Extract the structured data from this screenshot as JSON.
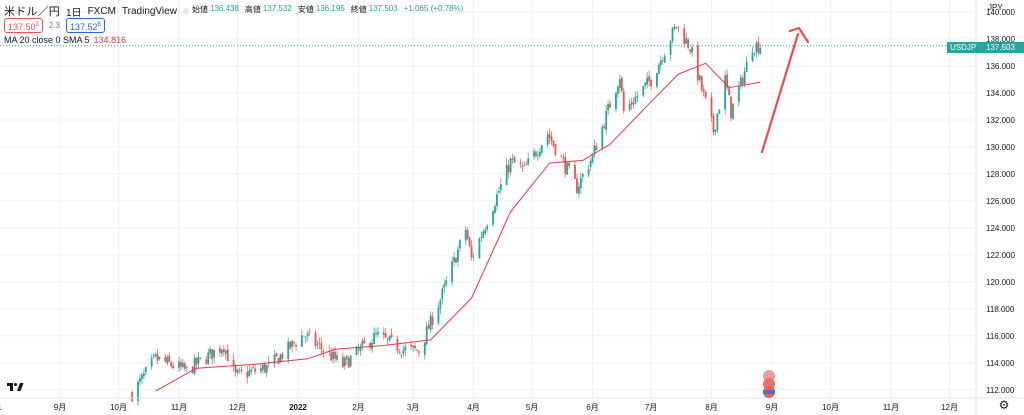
{
  "header": {
    "symbol": "米ドル／円",
    "interval": "1日",
    "exchange": "FXCM",
    "source": "TradingView"
  },
  "ohlc": {
    "open_label": "始値",
    "open": "136.438",
    "high_label": "高値",
    "high": "137.532",
    "low_label": "安値",
    "low": "136.195",
    "close_label": "終値",
    "close": "137.503",
    "change": "+1.065 (+0.78%)"
  },
  "quote": {
    "bid": "137.50",
    "bid_sup": "3",
    "spread": "2.3",
    "ask": "137.52",
    "ask_sup": "6"
  },
  "indicator": {
    "label": "MA 20 close 0 SMA 5",
    "value": "134.816"
  },
  "axis": {
    "currency": "JPY",
    "symbol_tag": "USDJPY",
    "price_tag": "137.503",
    "price_ticks": [
      "140.000",
      "138.000",
      "136.000",
      "134.000",
      "132.000",
      "130.000",
      "128.000",
      "126.000",
      "124.000",
      "122.000",
      "120.000",
      "118.000",
      "116.000",
      "114.000",
      "112.000"
    ],
    "time_ticks": [
      "1",
      "9月",
      "10月",
      "11月",
      "12月",
      "2022",
      "2月",
      "3月",
      "4月",
      "5月",
      "6月",
      "7月",
      "8月",
      "9月",
      "10月",
      "11月",
      "12月"
    ]
  },
  "colors": {
    "up": "#26a69a",
    "down": "#ef5350",
    "ma": "#f23645",
    "arrow": "#ef4b4b",
    "price_line": "#26a69a"
  },
  "chart_data": {
    "type": "candlestick",
    "symbol": "USDJPY",
    "interval": "1D",
    "y_range": [
      111,
      141
    ],
    "x_range": [
      "2021-07-29",
      "2022-12-31"
    ],
    "last_price": 137.503,
    "ma": {
      "name": "MA 20 close 0 SMA 5",
      "last_value": 134.816
    },
    "anchors": [
      [
        "2021-10-08",
        111.7
      ],
      [
        "2021-10-20",
        114.3
      ],
      [
        "2021-11-05",
        113.4
      ],
      [
        "2021-11-24",
        115.3
      ],
      [
        "2021-11-30",
        113.0
      ],
      [
        "2021-12-17",
        113.7
      ],
      [
        "2022-01-04",
        116.1
      ],
      [
        "2022-01-24",
        113.8
      ],
      [
        "2022-02-10",
        116.0
      ],
      [
        "2022-02-24",
        115.0
      ],
      [
        "2022-03-04",
        114.9
      ],
      [
        "2022-03-15",
        118.7
      ],
      [
        "2022-03-28",
        123.9
      ],
      [
        "2022-03-31",
        121.7
      ],
      [
        "2022-04-20",
        128.9
      ],
      [
        "2022-04-27",
        128.3
      ],
      [
        "2022-05-09",
        131.0
      ],
      [
        "2022-05-24",
        127.0
      ],
      [
        "2022-06-01",
        129.3
      ],
      [
        "2022-06-15",
        135.3
      ],
      [
        "2022-06-17",
        132.6
      ],
      [
        "2022-07-01",
        135.0
      ],
      [
        "2022-07-14",
        139.0
      ],
      [
        "2022-07-21",
        137.4
      ],
      [
        "2022-08-02",
        131.2
      ],
      [
        "2022-08-08",
        135.0
      ],
      [
        "2022-08-11",
        132.6
      ],
      [
        "2022-08-17",
        135.1
      ],
      [
        "2022-08-22",
        137.5
      ],
      [
        "2022-08-26",
        137.5
      ]
    ],
    "ma_anchors": [
      [
        "2021-10-20",
        111.9
      ],
      [
        "2021-11-10",
        113.6
      ],
      [
        "2021-12-10",
        113.9
      ],
      [
        "2022-01-06",
        114.3
      ],
      [
        "2022-01-20",
        115.0
      ],
      [
        "2022-02-15",
        115.3
      ],
      [
        "2022-03-10",
        115.7
      ],
      [
        "2022-03-31",
        118.8
      ],
      [
        "2022-04-20",
        125.2
      ],
      [
        "2022-05-10",
        128.8
      ],
      [
        "2022-05-27",
        129.0
      ],
      [
        "2022-06-10",
        130.2
      ],
      [
        "2022-06-30",
        133.2
      ],
      [
        "2022-07-15",
        135.4
      ],
      [
        "2022-07-29",
        136.2
      ],
      [
        "2022-08-10",
        134.4
      ],
      [
        "2022-08-26",
        134.8
      ]
    ]
  }
}
